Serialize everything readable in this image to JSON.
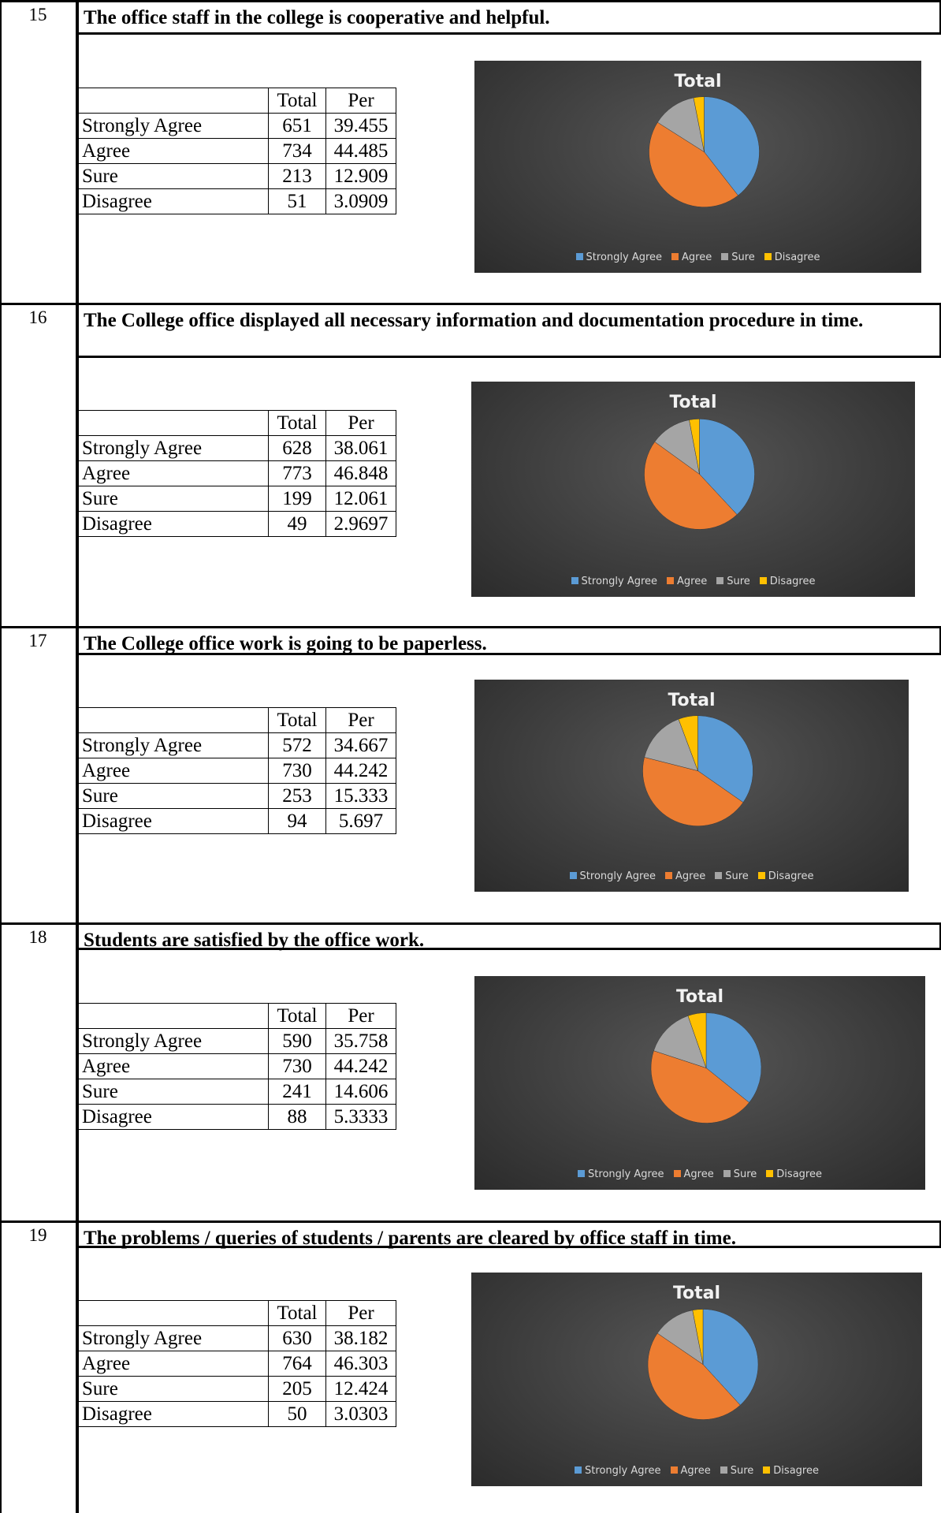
{
  "colors": {
    "strongly_agree": "#5b9bd5",
    "agree": "#ed7d31",
    "sure": "#a5a5a5",
    "disagree": "#ffc000"
  },
  "table_headers": {
    "total": "Total",
    "per": "Per"
  },
  "items": [
    {
      "number": "15",
      "question": "The office staff in the college is cooperative and helpful.",
      "rows": [
        {
          "label": "Strongly Agree",
          "total": "651",
          "per": "39.455"
        },
        {
          "label": "Agree",
          "total": "734",
          "per": "44.485"
        },
        {
          "label": "Sure",
          "total": "213",
          "per": "12.909"
        },
        {
          "label": "Disagree",
          "total": "51",
          "per": "3.0909"
        }
      ]
    },
    {
      "number": "16",
      "question": "The College office displayed all necessary information and documentation procedure in time.",
      "rows": [
        {
          "label": "Strongly Agree",
          "total": "628",
          "per": "38.061"
        },
        {
          "label": "Agree",
          "total": "773",
          "per": "46.848"
        },
        {
          "label": "Sure",
          "total": "199",
          "per": "12.061"
        },
        {
          "label": "Disagree",
          "total": "49",
          "per": "2.9697"
        }
      ]
    },
    {
      "number": "17",
      "question": "The College office work is going to be paperless.",
      "rows": [
        {
          "label": "Strongly Agree",
          "total": "572",
          "per": "34.667"
        },
        {
          "label": "Agree",
          "total": "730",
          "per": "44.242"
        },
        {
          "label": "Sure",
          "total": "253",
          "per": "15.333"
        },
        {
          "label": "Disagree",
          "total": "94",
          "per": "5.697"
        }
      ]
    },
    {
      "number": "18",
      "question": "Students are satisfied by the office work.",
      "rows": [
        {
          "label": "Strongly Agree",
          "total": "590",
          "per": "35.758"
        },
        {
          "label": "Agree",
          "total": "730",
          "per": "44.242"
        },
        {
          "label": "Sure",
          "total": "241",
          "per": "14.606"
        },
        {
          "label": "Disagree",
          "total": "88",
          "per": "5.3333"
        }
      ]
    },
    {
      "number": "19",
      "question": "The problems / queries of students / parents are cleared by office staff in time.",
      "rows": [
        {
          "label": "Strongly Agree",
          "total": "630",
          "per": "38.182"
        },
        {
          "label": "Agree",
          "total": "764",
          "per": "46.303"
        },
        {
          "label": "Sure",
          "total": "205",
          "per": "12.424"
        },
        {
          "label": "Disagree",
          "total": "50",
          "per": "3.0303"
        }
      ]
    }
  ],
  "chart_data": [
    {
      "type": "pie",
      "title": "Total",
      "categories": [
        "Strongly Agree",
        "Agree",
        "Sure",
        "Disagree"
      ],
      "values": [
        651,
        734,
        213,
        51
      ],
      "legend": "bottom"
    },
    {
      "type": "pie",
      "title": "Total",
      "categories": [
        "Strongly Agree",
        "Agree",
        "Sure",
        "Disagree"
      ],
      "values": [
        628,
        773,
        199,
        49
      ],
      "legend": "bottom"
    },
    {
      "type": "pie",
      "title": "Total",
      "categories": [
        "Strongly Agree",
        "Agree",
        "Sure",
        "Disagree"
      ],
      "values": [
        572,
        730,
        253,
        94
      ],
      "legend": "bottom"
    },
    {
      "type": "pie",
      "title": "Total",
      "categories": [
        "Strongly Agree",
        "Agree",
        "Sure",
        "Disagree"
      ],
      "values": [
        590,
        730,
        241,
        88
      ],
      "legend": "bottom"
    },
    {
      "type": "pie",
      "title": "Total",
      "categories": [
        "Strongly Agree",
        "Agree",
        "Sure",
        "Disagree"
      ],
      "values": [
        630,
        764,
        205,
        50
      ],
      "legend": "bottom"
    }
  ]
}
